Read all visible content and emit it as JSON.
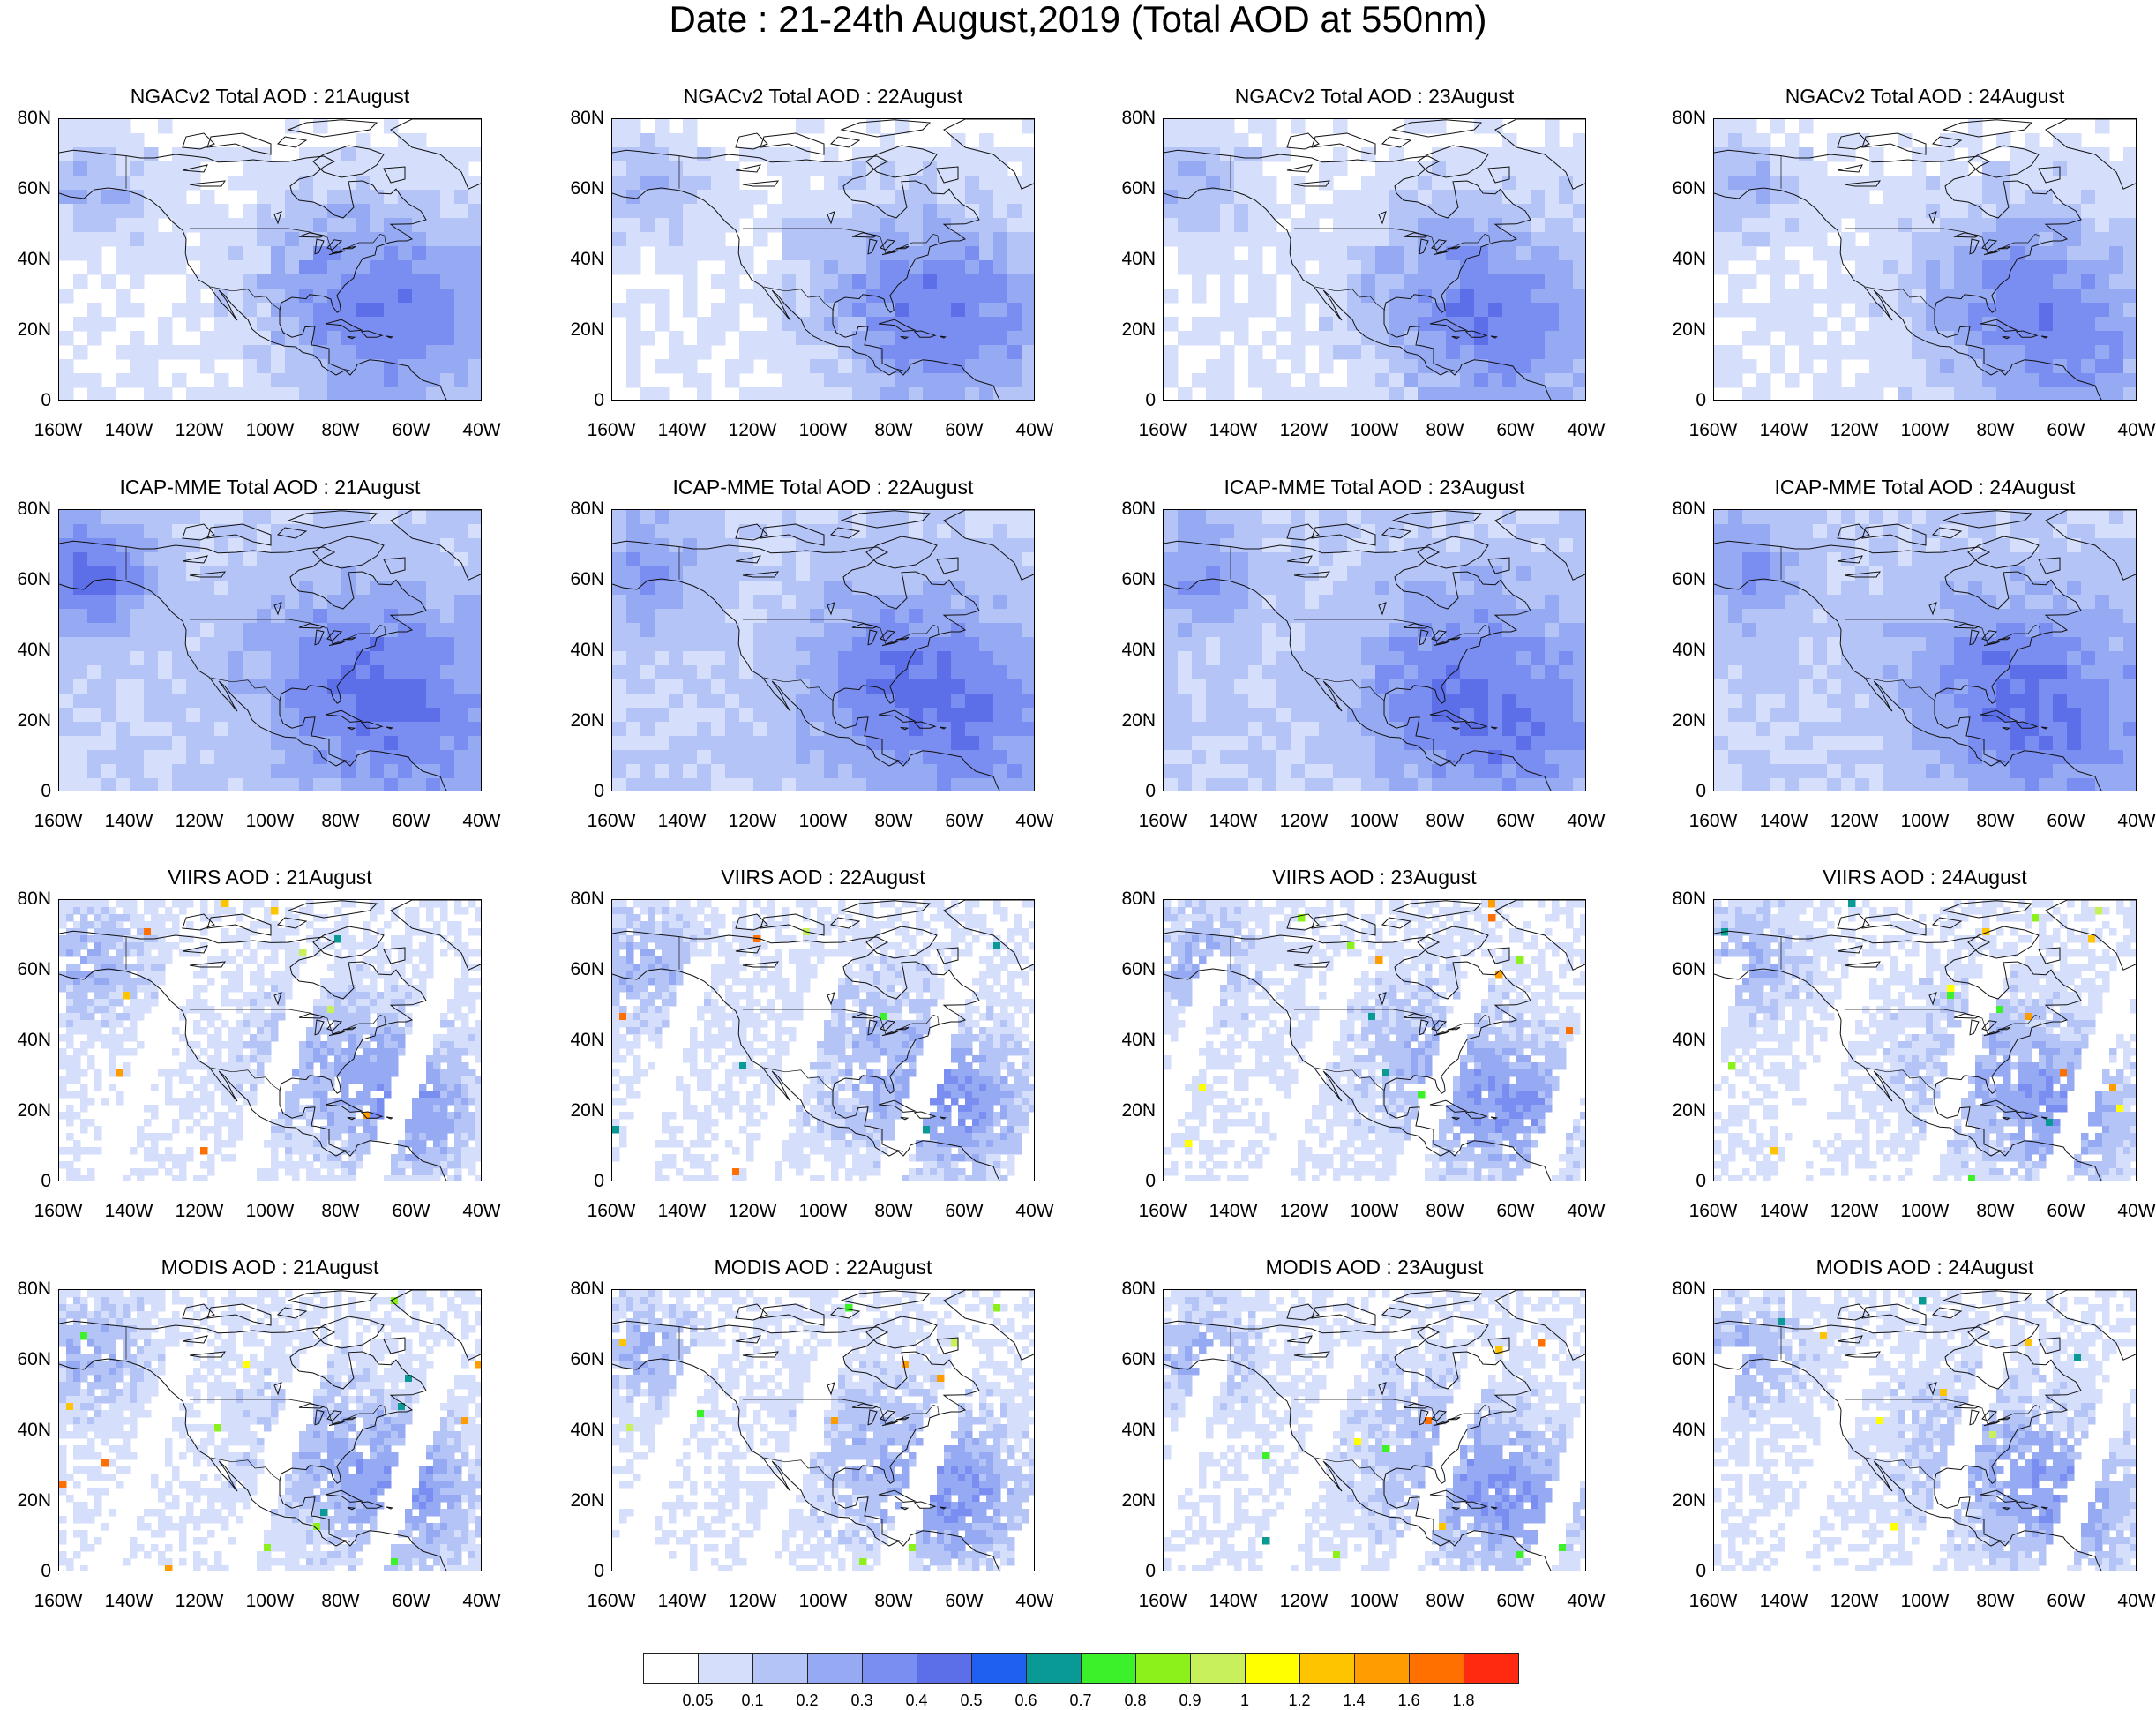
{
  "title": "Date : 21-24th August,2019 (Total AOD at 550nm)",
  "axes": {
    "lat_labels": [
      "80N",
      "60N",
      "40N",
      "20N",
      "0"
    ],
    "lon_labels": [
      "160W",
      "140W",
      "120W",
      "100W",
      "80W",
      "60W",
      "40W"
    ]
  },
  "panels": [
    {
      "title": "NGACv2 Total AOD : 21August"
    },
    {
      "title": "NGACv2 Total AOD : 22August"
    },
    {
      "title": "NGACv2 Total AOD : 23August"
    },
    {
      "title": "NGACv2 Total AOD : 24August"
    },
    {
      "title": "ICAP-MME Total AOD : 21August"
    },
    {
      "title": "ICAP-MME Total AOD : 22August"
    },
    {
      "title": "ICAP-MME Total AOD : 23August"
    },
    {
      "title": "ICAP-MME Total AOD : 24August"
    },
    {
      "title": "VIIRS AOD : 21August"
    },
    {
      "title": "VIIRS AOD : 22August"
    },
    {
      "title": "VIIRS AOD : 23August"
    },
    {
      "title": "VIIRS AOD : 24August"
    },
    {
      "title": "MODIS AOD : 21August"
    },
    {
      "title": "MODIS AOD : 22August"
    },
    {
      "title": "MODIS AOD : 23August"
    },
    {
      "title": "MODIS AOD : 24August"
    }
  ],
  "colorbar": {
    "labels": [
      "0.05",
      "0.1",
      "0.2",
      "0.3",
      "0.4",
      "0.5",
      "0.6",
      "0.7",
      "0.8",
      "0.9",
      "1",
      "1.2",
      "1.4",
      "1.6",
      "1.8"
    ],
    "colors": [
      "#ffffff",
      "#d5defa",
      "#b5c4f7",
      "#96aaf4",
      "#7a8df0",
      "#5c6fe8",
      "#1f60f0",
      "#0a9a95",
      "#3cf02a",
      "#8cf01a",
      "#c8f05a",
      "#ffff00",
      "#ffc400",
      "#ff9c00",
      "#ff7000",
      "#ff2a10"
    ]
  }
}
